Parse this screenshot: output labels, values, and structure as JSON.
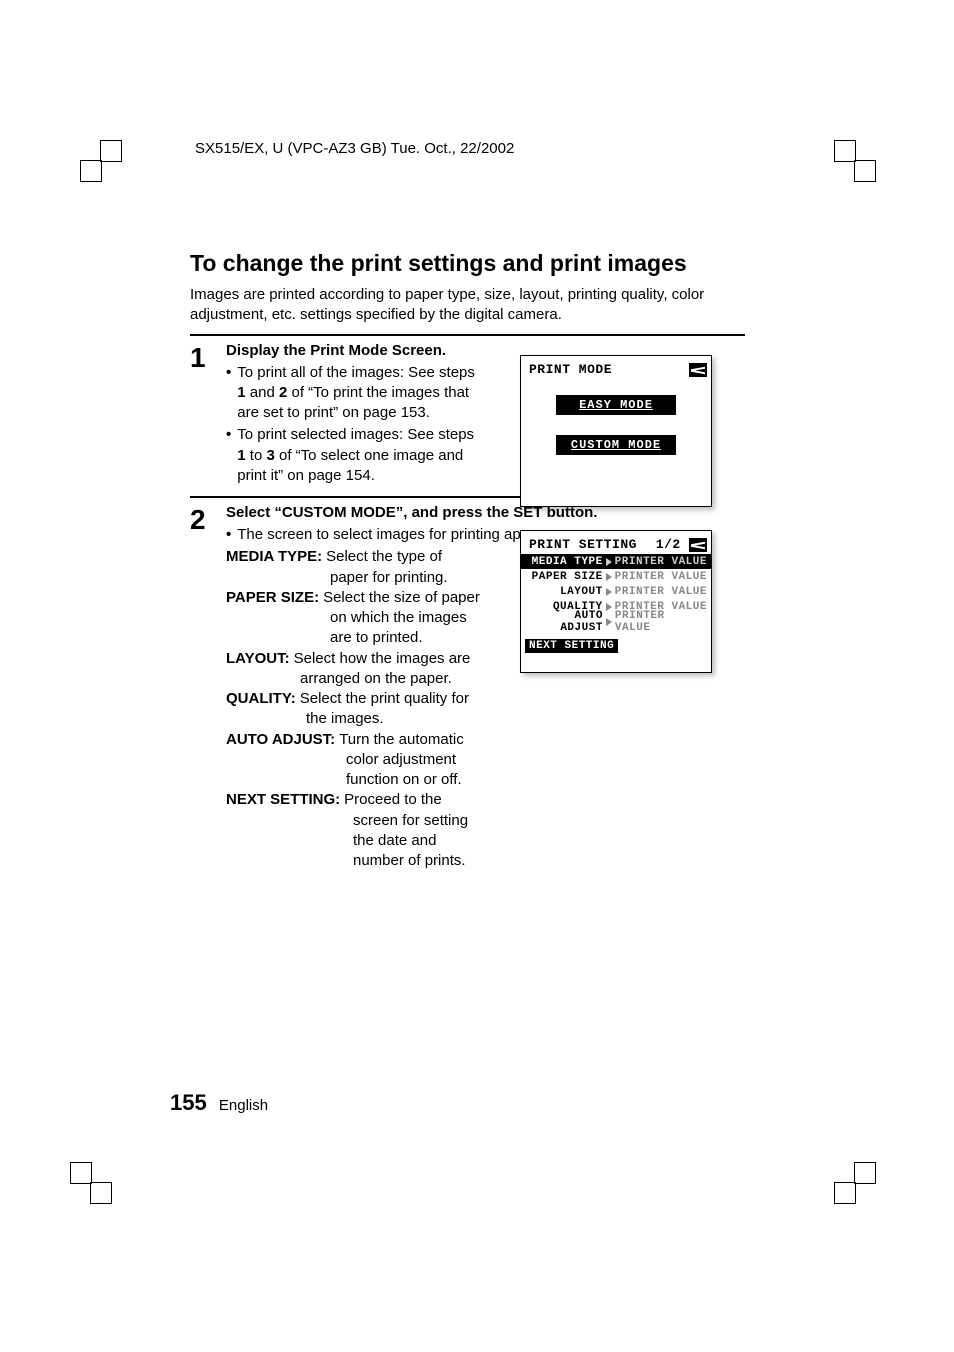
{
  "header": {
    "doc_info": "SX515/EX, U (VPC-AZ3 GB)    Tue. Oct., 22/2002"
  },
  "title": "To change the print settings and print images",
  "intro": "Images are printed according to paper type, size, layout, printing quality, color adjustment, etc. settings specified by the digital camera.",
  "step1": {
    "num": "1",
    "title": "Display the Print Mode Screen.",
    "bullet1_line1": "To print all of the images: See steps",
    "bullet1_line2": "1 and 2 of “To print the images that are set to print” on page 153.",
    "bold_1": "1",
    "bold_and": " and ",
    "bold_2": "2",
    "bold_rest1": " of “To print the images that",
    "bold_rest_line2": "are set to print” on page 153.",
    "bullet2_line1": "To print selected images: See steps",
    "b2_bold1": "1",
    "b2_mid": " to ",
    "b2_bold3": "3",
    "b2_rest": " of “To select one image and",
    "b2_line3": "print it” on page 154."
  },
  "step2": {
    "num": "2",
    "title": "Select “CUSTOM MODE”, and press the SET button.",
    "bullet1": "The screen to select images for printing appears.",
    "media_type_label": "MEDIA TYPE:",
    "media_type_val1": "Select the type of",
    "media_type_val2": "paper for printing.",
    "paper_size_label": "PAPER SIZE:",
    "paper_size_val1": "Select the size of paper",
    "paper_size_val2": "on which the images",
    "paper_size_val3": "are to printed.",
    "layout_label": "LAYOUT:",
    "layout_val1": "Select how the images are",
    "layout_val2": "arranged on the paper.",
    "quality_label": "QUALITY:",
    "quality_val1": "Select the print quality for",
    "quality_val2": "the images.",
    "auto_adjust_label": "AUTO ADJUST:",
    "auto_adjust_val1": "Turn the automatic",
    "auto_adjust_val2": "color adjustment",
    "auto_adjust_val3": "function on or off.",
    "next_setting_label": "NEXT SETTING:",
    "next_setting_val1": "Proceed to the",
    "next_setting_val2": "screen for setting",
    "next_setting_val3": "the date and",
    "next_setting_val4": "number of prints."
  },
  "lcd1": {
    "title": "PRINT MODE",
    "easy": "EASY  MODE",
    "custom": "CUSTOM MODE"
  },
  "lcd2": {
    "title": "PRINT SETTING",
    "page": "1/2",
    "rows": [
      {
        "label": "MEDIA TYPE",
        "value": "PRINTER VALUE"
      },
      {
        "label": "PAPER SIZE",
        "value": "PRINTER VALUE"
      },
      {
        "label": "LAYOUT",
        "value": "PRINTER VALUE"
      },
      {
        "label": "QUALITY",
        "value": "PRINTER VALUE"
      },
      {
        "label": "AUTO ADJUST",
        "value": "PRINTER VALUE"
      }
    ],
    "next": "NEXT SETTING"
  },
  "footer": {
    "page_num": "155",
    "lang": "English"
  }
}
